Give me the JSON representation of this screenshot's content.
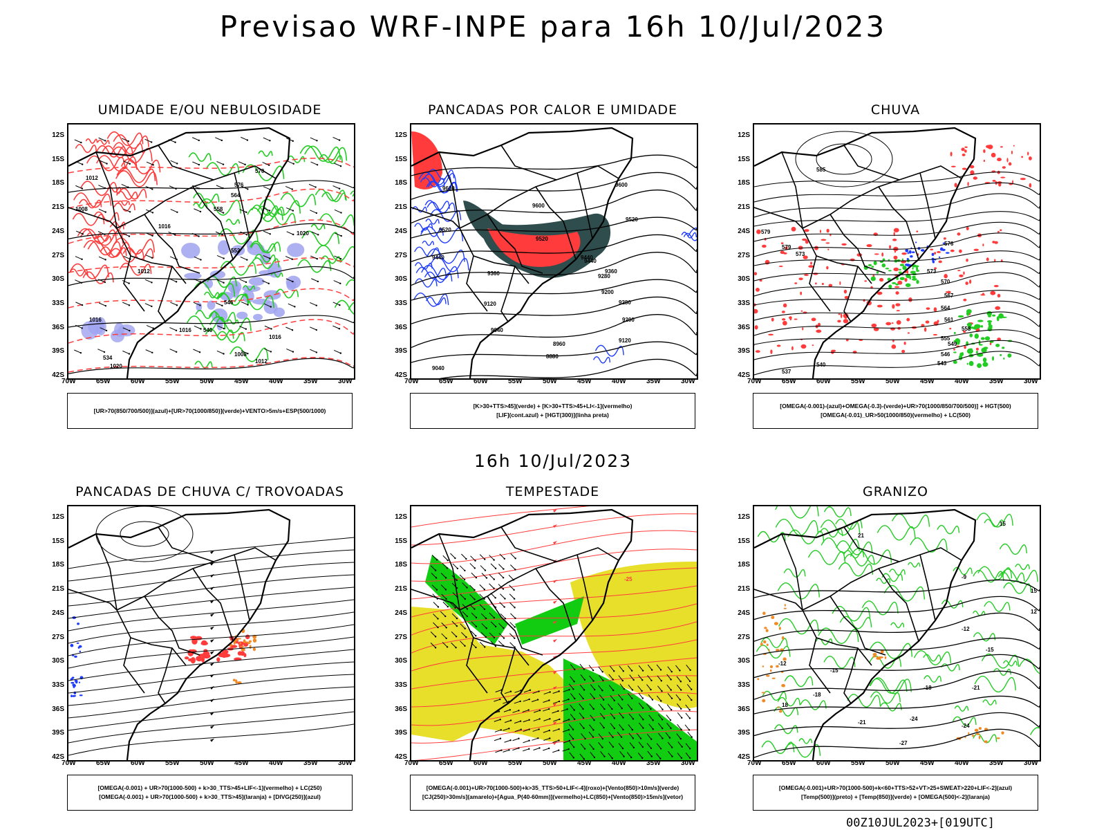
{
  "header": {
    "title": "Previsao WRF-INPE  para 16h 10/Jul/2023"
  },
  "middle_date": "16h 10/Jul/2023",
  "footer": "00Z10JUL2023+[019UTC]",
  "axes": {
    "lat_labels": [
      "12S",
      "15S",
      "18S",
      "21S",
      "24S",
      "27S",
      "30S",
      "33S",
      "36S",
      "39S",
      "42S"
    ],
    "lon_labels": [
      "70W",
      "65W",
      "60W",
      "55W",
      "50W",
      "45W",
      "40W",
      "35W",
      "30W"
    ]
  },
  "colors": {
    "humid_blue": "#9fa2ef",
    "humid_green": "#22cc22",
    "red": "#ff3b3b",
    "dark_teal": "#2f4d4d",
    "blue": "#1e3cff",
    "yellow": "#e8df2b",
    "green": "#11cc11",
    "orange": "#f08a24",
    "black": "#000000"
  },
  "panels": [
    {
      "title": "UMIDADE E/OU NEBULOSIDADE",
      "legend": [
        "[UR>70(850/700/500)](azul)+[UR>70(1000/850)](verde)+VENTO>5m/s+ESP(500/1000)"
      ],
      "labels": [
        "1012",
        "1016",
        "1008",
        "1016",
        "1020",
        "1012",
        "1016",
        "1012",
        "1008",
        "1020",
        "1016",
        "576",
        "570",
        "564",
        "558",
        "552",
        "546",
        "540",
        "534"
      ]
    },
    {
      "title": "PANCADAS POR CALOR E UMIDADE",
      "legend": [
        "[K>30+TTS>45](verde) + [K>30+TTS>45+LI<-1](vermelho)",
        "[LIF](cont.azul) + [HGT(300)](linha preta)"
      ],
      "labels": [
        "9600",
        "9600",
        "9520",
        "9520",
        "9440",
        "9440",
        "9360",
        "9280",
        "9200",
        "9120",
        "9040",
        "8960",
        "8880",
        "9600",
        "9520",
        "9440",
        "9360",
        "9280",
        "9200",
        "9120",
        "9040"
      ]
    },
    {
      "title": "CHUVA",
      "legend": [
        "[OMEGA(-0.001)-(azul)+OMEGA(-0.3)-(verde)+UR>70(1000/850/700/500)] + HGT(500)",
        "[OMEGA(-0.01)_UR>50(1000/850)(vermelho) + LC(500)"
      ],
      "labels": [
        "585",
        "585",
        "579",
        "576",
        "573",
        "570",
        "567",
        "564",
        "561",
        "558",
        "555",
        "549",
        "546",
        "543",
        "540",
        "537",
        "579",
        "573"
      ]
    },
    {
      "title": "PANCADAS DE CHUVA C/ TROVOADAS",
      "legend": [
        "[OMEGA(-0.001) + UR>70(1000-500) + k>30_TTS>45+LIF<-1](vermelho) + LC(250)",
        "[OMEGA(-0.001) + UR>70(1000-500) + k>30_TTS>45](laranja) + [DIVG(250)](azul)"
      ],
      "labels": []
    },
    {
      "title": "TEMPESTADE",
      "legend": [
        "[OMEGA(-0.001)+UR>70(1000-500)+k>35_TTS>50+LIF<-4](roxo)+[Vento(850)>10m/s](verde)",
        "[CJ(250)>30m/s](amarelo)+[Agua_P(40-60mm)](vermelho)+LC(850)+[Vento(850)>15m/s](vetor)"
      ],
      "labels": [
        "-25"
      ]
    },
    {
      "title": "GRANIZO",
      "legend": [
        "[OMEGA(-0.001)+UR>70(1000-500)+k<60+TTS>52+VT>25+SWEAT>220+LIF<-2](azul)",
        "[Temp(500)](preto) + [Temp(850)](verde) + [OMEGA(500)<-2](laranja)"
      ],
      "labels": [
        "15",
        "21",
        "-9",
        "-12",
        "-15",
        "-18",
        "-21",
        "-24",
        "-27",
        "-12",
        "-15",
        "-18",
        "-21",
        "-24",
        "18",
        "12",
        "15"
      ]
    }
  ]
}
